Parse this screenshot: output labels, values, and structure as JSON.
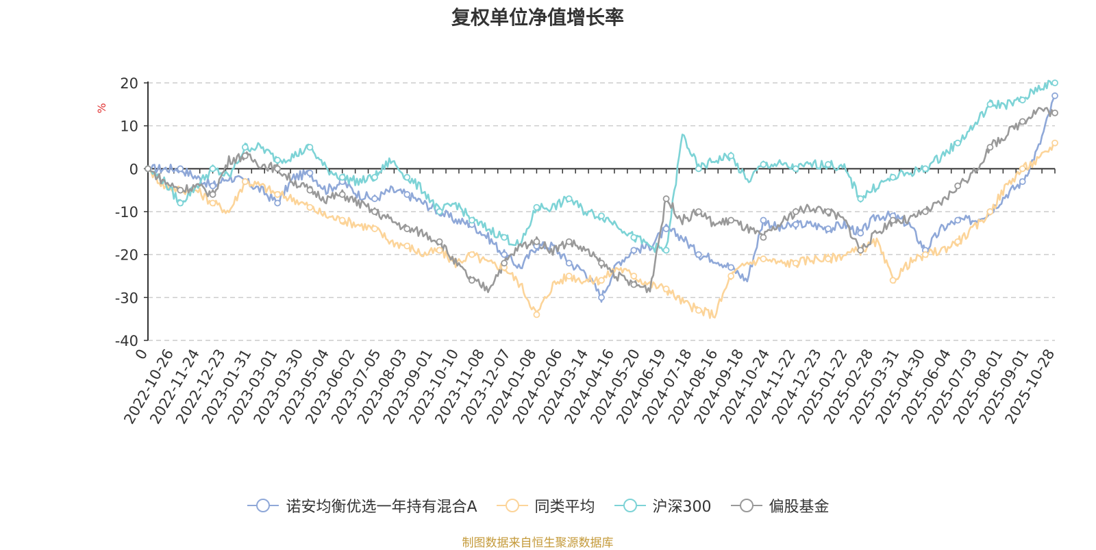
{
  "chart_data": {
    "type": "line",
    "title": "复权单位净值增长率",
    "ylabel": "%",
    "xlabel": "",
    "ylim": [
      -40,
      20
    ],
    "yticks": [
      20,
      10,
      0,
      -10,
      -20,
      -30,
      -40
    ],
    "grid": true,
    "legend_position": "bottom-center",
    "x_tick_labels": [
      "0",
      "2022-10-26",
      "2022-11-24",
      "2022-12-23",
      "2023-01-31",
      "2023-03-01",
      "2023-03-30",
      "2023-05-04",
      "2023-06-02",
      "2023-07-05",
      "2023-08-03",
      "2023-09-01",
      "2023-10-10",
      "2023-11-08",
      "2023-12-07",
      "2024-01-08",
      "2024-02-06",
      "2024-03-14",
      "2024-04-16",
      "2024-05-20",
      "2024-06-19",
      "2024-07-18",
      "2024-08-16",
      "2024-09-18",
      "2024-10-24",
      "2024-11-22",
      "2024-12-23",
      "2025-01-22",
      "2025-02-28",
      "2025-03-31",
      "2025-04-30",
      "2025-06-04",
      "2025-07-03",
      "2025-08-01",
      "2025-09-01",
      "2025-10-28"
    ],
    "series": [
      {
        "name": "诺安均衡优选一年持有混合A",
        "color": "#8fa8d8",
        "values": [
          0,
          0,
          0,
          -2,
          -4,
          -2,
          -3,
          -5,
          -8,
          -2,
          -1,
          -5,
          -3,
          -6,
          -7,
          -5,
          -6,
          -8,
          -10,
          -12,
          -13,
          -16,
          -20,
          -23,
          -18,
          -18,
          -22,
          -24,
          -30,
          -22,
          -19,
          -18,
          -14,
          -16,
          -20,
          -21,
          -23,
          -26,
          -12,
          -14,
          -13,
          -13,
          -14,
          -13,
          -15,
          -11,
          -11,
          -13,
          -19,
          -14,
          -12,
          -12,
          -10,
          -6,
          -3,
          5,
          17
        ]
      },
      {
        "name": "同类平均",
        "color": "#fcd499",
        "values": [
          0,
          -4,
          -5,
          -5,
          -8,
          -10,
          -3,
          -4,
          -6,
          -7,
          -9,
          -11,
          -12,
          -13,
          -14,
          -17,
          -18,
          -20,
          -19,
          -22,
          -20,
          -22,
          -23,
          -27,
          -34,
          -27,
          -25,
          -26,
          -26,
          -23,
          -25,
          -27,
          -28,
          -31,
          -33,
          -34,
          -25,
          -22,
          -21,
          -22,
          -22,
          -21,
          -21,
          -20,
          -19,
          -17,
          -26,
          -22,
          -20,
          -19,
          -17,
          -14,
          -10,
          -4,
          0,
          2,
          6
        ]
      },
      {
        "name": "沪深300",
        "color": "#7dd3d6",
        "values": [
          0,
          -3,
          -8,
          -4,
          0,
          -2,
          5,
          5,
          2,
          3,
          5,
          0,
          -2,
          -3,
          -2,
          2,
          -2,
          -5,
          -10,
          -8,
          -12,
          -14,
          -16,
          -18,
          -9,
          -9,
          -7,
          -10,
          -11,
          -13,
          -16,
          -18,
          -19,
          8,
          0,
          2,
          3,
          -3,
          1,
          1,
          0,
          1,
          1,
          0,
          -7,
          -4,
          -2,
          -1,
          0,
          3,
          6,
          10,
          15,
          15,
          16,
          19,
          20
        ]
      },
      {
        "name": "偏股基金",
        "color": "#999999",
        "values": [
          0,
          -3,
          -5,
          -4,
          -6,
          2,
          3,
          1,
          0,
          -3,
          -5,
          -7,
          -6,
          -8,
          -10,
          -12,
          -14,
          -15,
          -17,
          -22,
          -26,
          -28,
          -22,
          -18,
          -17,
          -19,
          -17,
          -19,
          -22,
          -25,
          -27,
          -28,
          -7,
          -12,
          -10,
          -13,
          -12,
          -14,
          -16,
          -13,
          -10,
          -9,
          -10,
          -12,
          -19,
          -15,
          -12,
          -12,
          -10,
          -8,
          -4,
          -1,
          5,
          8,
          11,
          14,
          13
        ]
      }
    ]
  },
  "source_note": "制图数据来自恒生聚源数据库"
}
